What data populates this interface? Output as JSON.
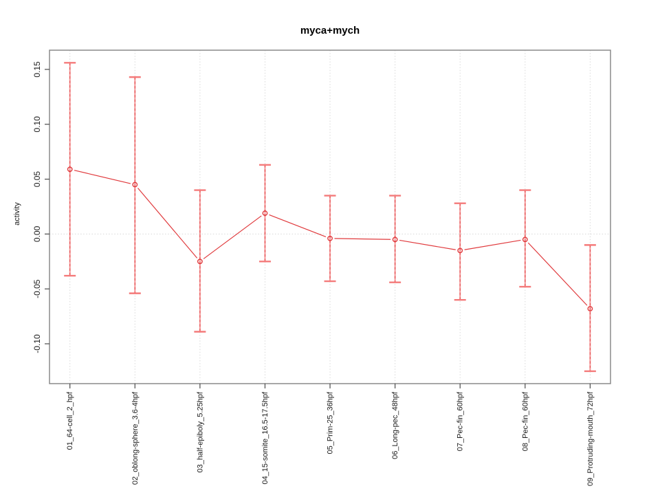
{
  "page": {
    "title": "myca+mych"
  },
  "chart_data": {
    "type": "line",
    "title": "myca+mych",
    "xlabel": "",
    "ylabel": "activity",
    "categories": [
      "01_64-cell_2_hpf",
      "02_oblong-sphere_3.6-4hpf",
      "03_half-epiboly_5.25hpf",
      "04_15-somite_16.5-17.5hpf",
      "05_Prim-25_36hpf",
      "06_Long-pec_48hpf",
      "07_Pec-fin_60hpf",
      "08_Pec-fin_60hpf",
      "09_Protruding-mouth_72hpf"
    ],
    "series": [
      {
        "name": "activity",
        "values": [
          0.059,
          0.045,
          -0.025,
          0.019,
          -0.004,
          -0.005,
          -0.015,
          -0.005,
          -0.068
        ],
        "error_high": [
          0.156,
          0.143,
          0.04,
          0.063,
          0.035,
          0.035,
          0.028,
          0.04,
          -0.01
        ],
        "error_low": [
          -0.038,
          -0.054,
          -0.089,
          -0.025,
          -0.043,
          -0.044,
          -0.06,
          -0.048,
          -0.125
        ]
      }
    ],
    "yticks": {
      "values": [
        0.15,
        0.1,
        0.05,
        0.0,
        -0.05,
        -0.1
      ],
      "labels": [
        "0.15",
        "0.10",
        "0.05",
        "0.00",
        "-0.05",
        "-0.10"
      ]
    },
    "ylim": [
      -0.1363,
      0.1675
    ],
    "grid": {
      "vertical": "dotted line at each category",
      "horizontal": "dotted line at y = 0"
    },
    "legend": "none",
    "point_style": "open circle with error bars",
    "colors": {
      "series": "#e0393c",
      "error_bar_fill": "#f47a7a",
      "grid": "#d8d8d8",
      "frame": "#8a8a8a",
      "tick": "#4a4a4a",
      "text": "#1a1a1a",
      "background": "#ffffff"
    }
  }
}
